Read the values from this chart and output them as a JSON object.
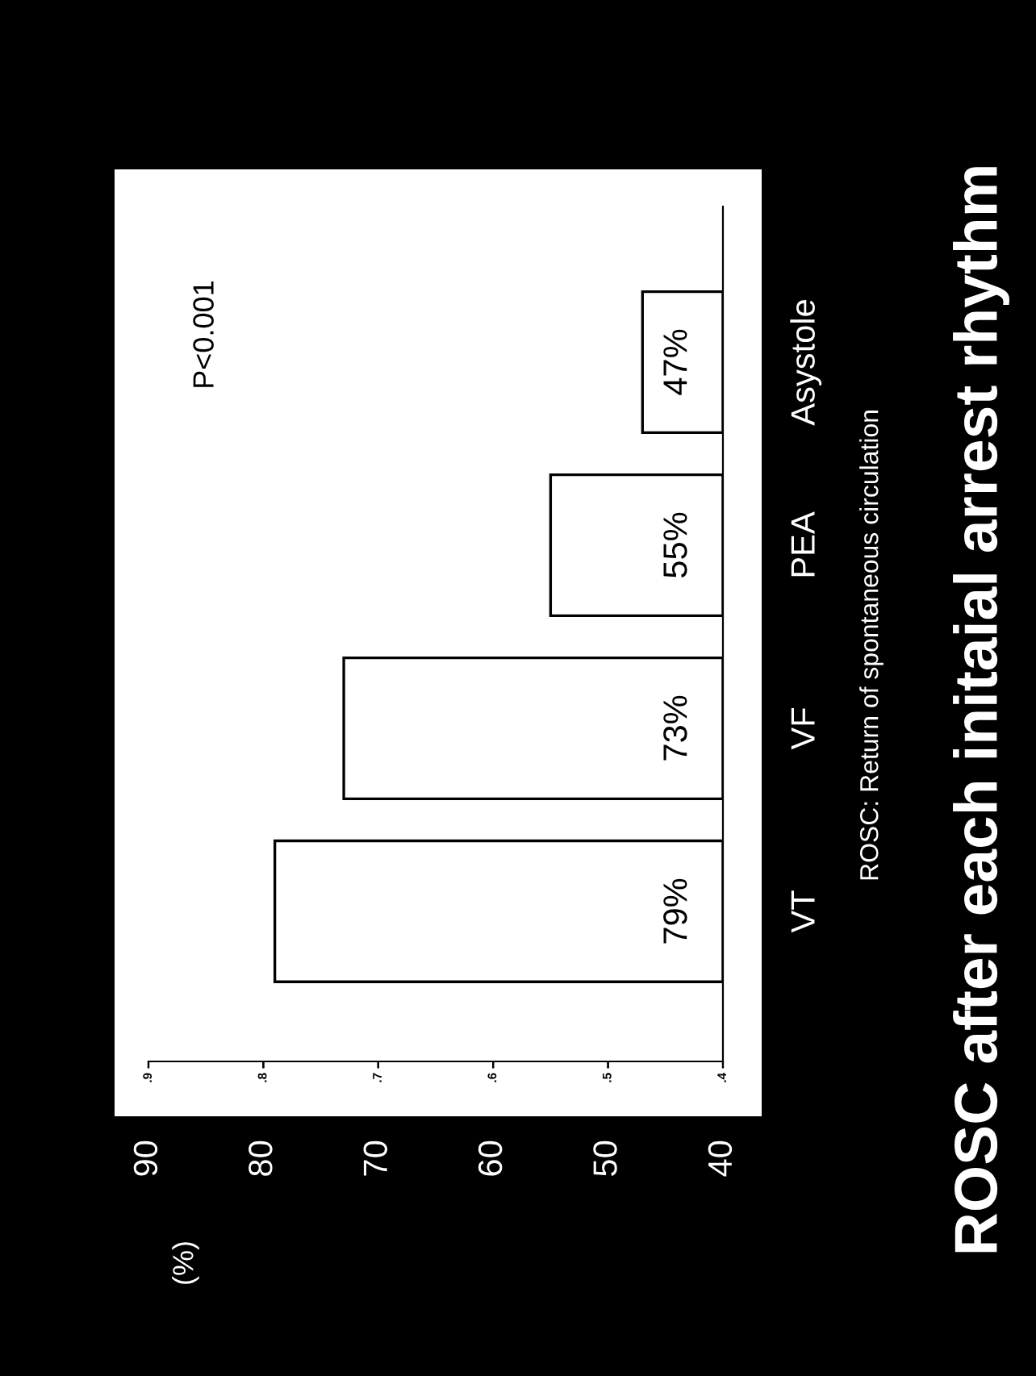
{
  "chart_data": {
    "type": "bar",
    "orientation": "horizontal",
    "title": "ROSC after each initaial arrest rhythm",
    "subtitle": "ROSC: Return of spontaneous circulation",
    "categories": [
      "Asystole",
      "PEA",
      "VF",
      "VT"
    ],
    "values": [
      47,
      55,
      73,
      79
    ],
    "value_labels": [
      "47%",
      "55%",
      "73%",
      "79%"
    ],
    "color": "#ffffff",
    "xlim": [
      90,
      40
    ],
    "xticks": [
      90,
      80,
      70,
      60,
      50,
      40
    ],
    "x2lim": [
      0.9,
      0.4
    ],
    "x2ticks": [
      {
        "value": 0.9,
        "label": ".9"
      },
      {
        "value": 0.8,
        "label": ".8"
      },
      {
        "value": 0.7,
        "label": ".7"
      },
      {
        "value": 0.6,
        "label": ".6"
      },
      {
        "value": 0.5,
        "label": ".5"
      },
      {
        "value": 0.4,
        "label": ".4"
      }
    ],
    "annotations": [
      "P<0.001",
      "(%)"
    ],
    "grid": false,
    "legend": false
  }
}
